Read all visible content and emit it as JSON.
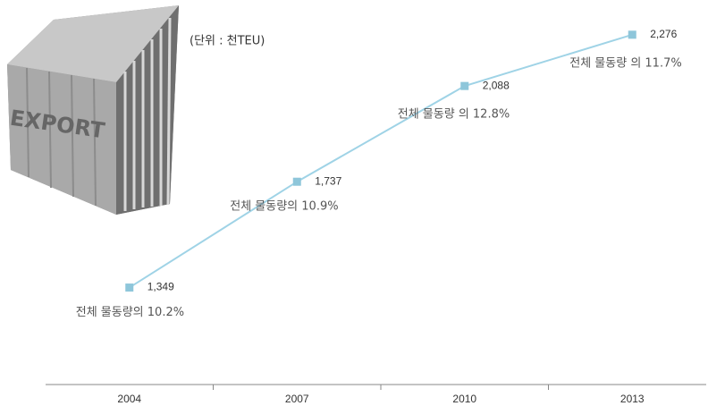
{
  "chart_data": {
    "type": "line",
    "unit_note": "(단위 : 천TEU)",
    "illustration_label": "EXPORT",
    "categories": [
      "2004",
      "2007",
      "2010",
      "2013"
    ],
    "series": [
      {
        "color": "#9fd3e6",
        "marker_color": "#8ec6da",
        "values": [
          1349,
          1737,
          2088,
          2276
        ],
        "value_labels": [
          "1,349",
          "1,737",
          "2,088",
          "2,276"
        ]
      }
    ],
    "annotations": [
      "전체 물동량의 10.2%",
      "전체 물동량의 10.9%",
      "전체 물동량 의 12.8%",
      "전체 물동량 의 11.7%"
    ],
    "ylim": [
      1000,
      2400
    ]
  }
}
